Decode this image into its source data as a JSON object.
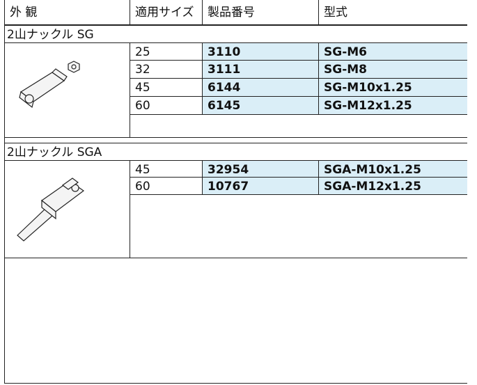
{
  "header": {
    "columns": [
      "外 観",
      "適用サイズ",
      "製品番号",
      "型式"
    ]
  },
  "sections": [
    {
      "title": "2山ナックル SG",
      "rows": [
        [
          "25",
          "3110",
          "SG-M6"
        ],
        [
          "32",
          "3111",
          "SG-M8"
        ],
        [
          "45",
          "6144",
          "SG-M10x1.25"
        ],
        [
          "60",
          "6145",
          "SG-M12x1.25"
        ]
      ]
    },
    {
      "title": "2山ナックル SGA",
      "rows": [
        [
          "45",
          "32954",
          "SGA-M10x1.25"
        ],
        [
          "60",
          "10767",
          "SGA-M12x1.25"
        ]
      ]
    }
  ]
}
